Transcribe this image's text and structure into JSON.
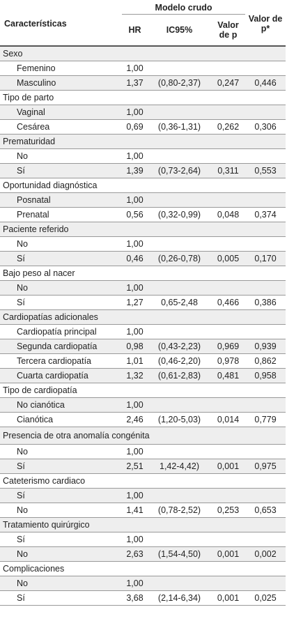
{
  "header": {
    "characteristics": "Características",
    "group": "Modelo crudo",
    "hr": "HR",
    "ic": "IC95%",
    "p": "Valor de p",
    "p_adj": "Valor de p*"
  },
  "groups": [
    {
      "title": "Sexo",
      "rows": [
        {
          "label": "Femenino",
          "hr": "1,00"
        },
        {
          "label": "Masculino",
          "hr": "1,37",
          "ic": "(0,80-2,37)",
          "p": "0,247",
          "p_adj": "0,446"
        }
      ]
    },
    {
      "title": "Tipo de parto",
      "rows": [
        {
          "label": "Vaginal",
          "hr": "1,00"
        },
        {
          "label": "Cesárea",
          "hr": "0,69",
          "ic": "(0,36-1,31)",
          "p": "0,262",
          "p_adj": "0,306"
        }
      ]
    },
    {
      "title": "Prematuridad",
      "rows": [
        {
          "label": "No",
          "hr": "1,00"
        },
        {
          "label": "Sí",
          "hr": "1,39",
          "ic": "(0,73-2,64)",
          "p": "0,311",
          "p_adj": "0,553"
        }
      ]
    },
    {
      "title": "Oportunidad diagnóstica",
      "rows": [
        {
          "label": "Posnatal",
          "hr": "1,00"
        },
        {
          "label": "Prenatal",
          "hr": "0,56",
          "ic": "(0,32-0,99)",
          "p": "0,048",
          "p_adj": "0,374"
        }
      ]
    },
    {
      "title": "Paciente referido",
      "rows": [
        {
          "label": "No",
          "hr": "1,00"
        },
        {
          "label": "Sí",
          "hr": "0,46",
          "ic": "(0,26-0,78)",
          "p": "0,005",
          "p_adj": "0,170"
        }
      ]
    },
    {
      "title": "Bajo peso al nacer",
      "rows": [
        {
          "label": "No",
          "hr": "1,00"
        },
        {
          "label": "Sí",
          "hr": "1,27",
          "ic": "0,65-2,48",
          "p": "0,466",
          "p_adj": "0,386"
        }
      ]
    },
    {
      "title": "Cardiopatías adicionales",
      "rows": [
        {
          "label": "Cardiopatía principal",
          "hr": "1,00"
        },
        {
          "label": "Segunda cardiopatía",
          "hr": "0,98",
          "ic": "(0,43-2,23)",
          "p": "0,969",
          "p_adj": "0,939"
        },
        {
          "label": "Tercera cardiopatía",
          "hr": "1,01",
          "ic": "(0,46-2,20)",
          "p": "0,978",
          "p_adj": "0,862"
        },
        {
          "label": "Cuarta cardiopatía",
          "hr": "1,32",
          "ic": "(0,61-2,83)",
          "p": "0,481",
          "p_adj": "0,958"
        }
      ]
    },
    {
      "title": "Tipo de cardiopatía",
      "rows": [
        {
          "label": "No cianótica",
          "hr": "1,00"
        },
        {
          "label": "Cianótica",
          "hr": "2,46",
          "ic": "(1,20-5,03)",
          "p": "0,014",
          "p_adj": "0,779"
        }
      ]
    },
    {
      "title": "Presencia de otra anomalía congénita",
      "rows": [
        {
          "label": "No",
          "hr": "1,00"
        },
        {
          "label": "Sí",
          "hr": "2,51",
          "ic": "1,42-4,42)",
          "p": "0,001",
          "p_adj": "0,975"
        }
      ]
    },
    {
      "title": "Cateterismo cardiaco",
      "rows": [
        {
          "label": "Sí",
          "hr": "1,00"
        },
        {
          "label": "No",
          "hr": "1,41",
          "ic": "(0,78-2,52)",
          "p": "0,253",
          "p_adj": "0,653"
        }
      ]
    },
    {
      "title": "Tratamiento quirúrgico",
      "rows": [
        {
          "label": "Sí",
          "hr": "1,00"
        },
        {
          "label": "No",
          "hr": "2,63",
          "ic": "(1,54-4,50)",
          "p": "0,001",
          "p_adj": "0,002"
        }
      ]
    },
    {
      "title": "Complicaciones",
      "rows": [
        {
          "label": "No",
          "hr": "1,00"
        },
        {
          "label": "Sí",
          "hr": "3,68",
          "ic": "(2,14-6,34)",
          "p": "0,001",
          "p_adj": "0,025"
        }
      ]
    }
  ]
}
